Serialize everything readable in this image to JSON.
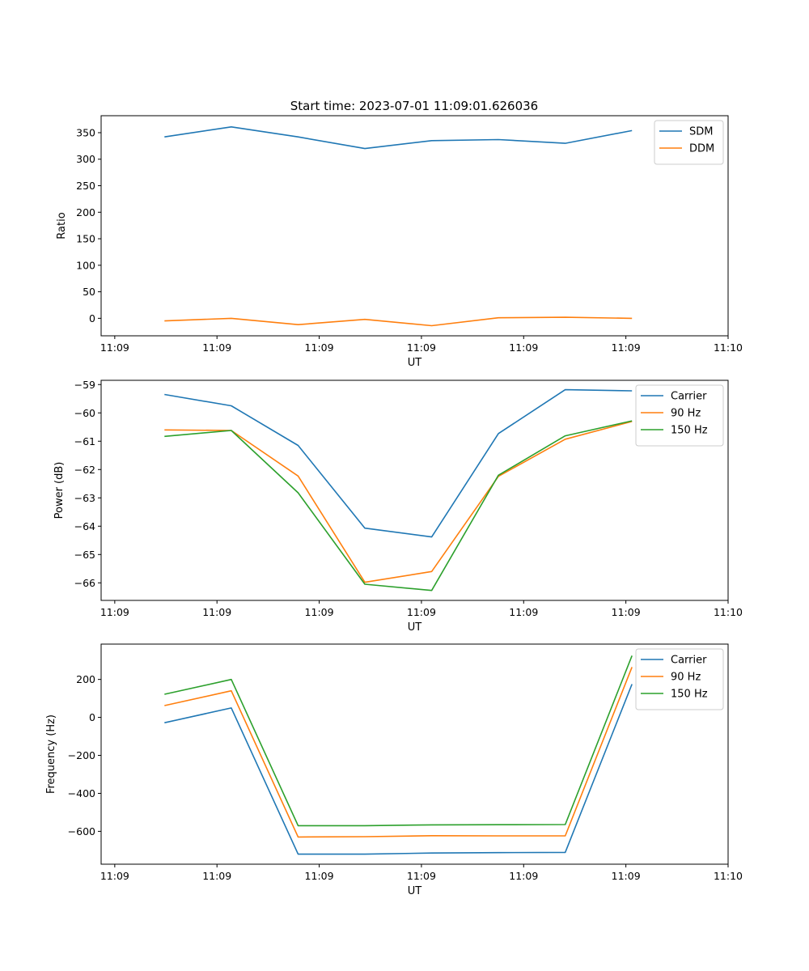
{
  "title": "Start time: 2023-07-01 11:09:01.626036",
  "chart_data": [
    {
      "type": "line",
      "title": "Start time: 2023-07-01 11:09:01.626036",
      "xlabel": "UT",
      "ylabel": "Ratio",
      "xlim": [
        0,
        9.2
      ],
      "ylim": [
        -33,
        382
      ],
      "xticks": [
        0.2,
        1.7,
        3.2,
        4.7,
        6.2,
        7.7,
        9.2
      ],
      "xtick_labels": [
        "11:09",
        "11:09",
        "11:09",
        "11:09",
        "11:09",
        "11:09",
        "11:10"
      ],
      "yticks": [
        0,
        50,
        100,
        150,
        200,
        250,
        300,
        350
      ],
      "ytick_labels": [
        "0",
        "50",
        "100",
        "150",
        "200",
        "250",
        "300",
        "350"
      ],
      "x": [
        0.93,
        1.91,
        2.89,
        3.87,
        4.85,
        5.83,
        6.81,
        7.79
      ],
      "series": [
        {
          "name": "SDM",
          "color": "#1f77b4",
          "values": [
            342,
            361,
            342,
            320,
            335,
            337,
            330,
            354
          ]
        },
        {
          "name": "DDM",
          "color": "#ff7f0e",
          "values": [
            -5,
            0,
            -12,
            -2,
            -14,
            1,
            2,
            0
          ]
        }
      ],
      "legend": "top-right"
    },
    {
      "type": "line",
      "xlabel": "UT",
      "ylabel": "Power (dB)",
      "xlim": [
        0,
        9.2
      ],
      "ylim": [
        -66.62,
        -58.85
      ],
      "xticks": [
        0.2,
        1.7,
        3.2,
        4.7,
        6.2,
        7.7,
        9.2
      ],
      "xtick_labels": [
        "11:09",
        "11:09",
        "11:09",
        "11:09",
        "11:09",
        "11:09",
        "11:10"
      ],
      "yticks": [
        -66,
        -65,
        -64,
        -63,
        -62,
        -61,
        -60,
        -59
      ],
      "ytick_labels": [
        "−66",
        "−65",
        "−64",
        "−63",
        "−62",
        "−61",
        "−60",
        "−59"
      ],
      "x": [
        0.93,
        1.91,
        2.89,
        3.87,
        4.85,
        5.83,
        6.81,
        7.79
      ],
      "series": [
        {
          "name": "Carrier",
          "color": "#1f77b4",
          "values": [
            -59.35,
            -59.75,
            -61.15,
            -64.07,
            -64.38,
            -60.73,
            -59.18,
            -59.22
          ]
        },
        {
          "name": "90 Hz",
          "color": "#ff7f0e",
          "values": [
            -60.6,
            -60.62,
            -62.23,
            -65.98,
            -65.6,
            -62.24,
            -60.93,
            -60.3
          ]
        },
        {
          "name": "150 Hz",
          "color": "#2ca02c",
          "values": [
            -60.83,
            -60.62,
            -62.82,
            -66.05,
            -66.27,
            -62.2,
            -60.81,
            -60.28
          ]
        }
      ],
      "legend": "top-right"
    },
    {
      "type": "line",
      "xlabel": "UT",
      "ylabel": "Frequency (Hz)",
      "xlim": [
        0,
        9.2
      ],
      "ylim": [
        -773,
        386
      ],
      "xticks": [
        0.2,
        1.7,
        3.2,
        4.7,
        6.2,
        7.7,
        9.2
      ],
      "xtick_labels": [
        "11:09",
        "11:09",
        "11:09",
        "11:09",
        "11:09",
        "11:09",
        "11:10"
      ],
      "yticks": [
        -600,
        -400,
        -200,
        0,
        200
      ],
      "ytick_labels": [
        "−600",
        "−400",
        "−200",
        "0",
        "200"
      ],
      "x": [
        0.93,
        1.91,
        2.89,
        3.87,
        4.85,
        5.83,
        6.81,
        7.79
      ],
      "series": [
        {
          "name": "Carrier",
          "color": "#1f77b4",
          "values": [
            -28,
            50,
            -720,
            -720,
            -714,
            -712,
            -711,
            175
          ]
        },
        {
          "name": "90 Hz",
          "color": "#ff7f0e",
          "values": [
            62,
            140,
            -630,
            -628,
            -623,
            -624,
            -624,
            265
          ]
        },
        {
          "name": "150 Hz",
          "color": "#2ca02c",
          "values": [
            122,
            200,
            -570,
            -570,
            -566,
            -565,
            -564,
            325
          ]
        }
      ],
      "legend": "top-right"
    }
  ]
}
